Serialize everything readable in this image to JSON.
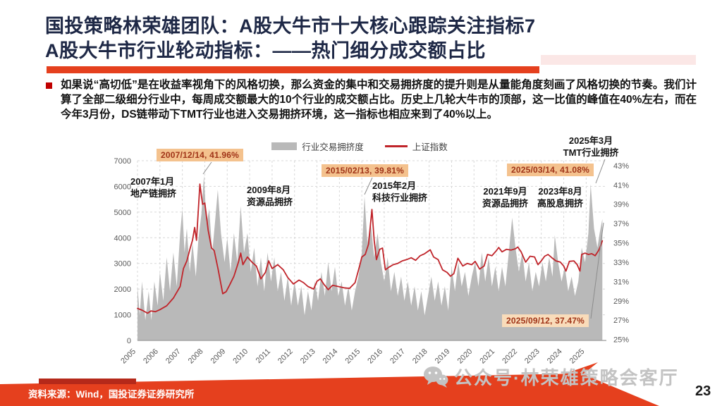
{
  "slide": {
    "title": {
      "line1": "国投策略林荣雄团队：A股大牛市十大核心跟踪关注指标7",
      "line2": "A股大牛市行业轮动指标：——热门细分成交额占比"
    },
    "bullet": {
      "text": "如果说“高切低”是在收益率视角下的风格切换，那么资金的集中和交易拥挤度的提升则是从量能角度刻画了风格切换的节奏。我们计算了全部二级细分行业中，每周成交额最大的10个行业的成交额占比。历史上几轮大牛市的顶部，这一比值的峰值在40%左右，而在今年3月份，DS链带动下TMT行业也进入交易拥挤环境，这一指标也相应来到了40%以上。"
    },
    "footer": {
      "source": "资料来源：Wind，国投证券证券研究所",
      "page_number": "23"
    },
    "watermark": {
      "text": "公众号·林荣雄策略会客厅"
    }
  },
  "colors": {
    "title_navy": "#1e2846",
    "accent_red": "#e5401e",
    "dark_red": "#b5291a",
    "area_gray": "#b9b9b9",
    "line_red": "#c0242a",
    "badge_bg": "#f4c28e",
    "badge_bg_light": "#f9dcba",
    "badge_text": "#a03418",
    "grid_gray": "#d8d8d8",
    "tick_gray": "#595959"
  },
  "chart_data": {
    "type": "combo",
    "title": "",
    "legend": [
      {
        "label": "行业交易拥挤度",
        "marker": "area",
        "color": "#b9b9b9"
      },
      {
        "label": "上证指数",
        "marker": "line",
        "color": "#c0242a"
      }
    ],
    "x_axis": {
      "ticks": [
        "2005",
        "2006",
        "2007",
        "2008",
        "2009",
        "2010",
        "2011",
        "2012",
        "2013",
        "2014",
        "2015",
        "2016",
        "2017",
        "2018",
        "2019",
        "2020",
        "2021",
        "2022",
        "2023",
        "2024",
        "2025"
      ],
      "range": [
        2005,
        2025.9
      ]
    },
    "left_axis": {
      "ticks": [
        0,
        1000,
        2000,
        3000,
        4000,
        5000,
        6000,
        7000
      ],
      "range": [
        0,
        7000
      ]
    },
    "right_axis": {
      "ticks": [
        "43%",
        "41%",
        "39%",
        "37%",
        "35%",
        "33%",
        "31%",
        "29%",
        "27%",
        "25%"
      ],
      "tick_values": [
        43,
        41,
        39,
        37,
        35,
        33,
        31,
        29,
        27,
        25
      ],
      "range": [
        24.9,
        43.5
      ]
    },
    "series": [
      {
        "name": "行业交易拥挤度",
        "type": "area",
        "axis": "right",
        "color": "#b9b9b9",
        "points": [
          [
            2005.0,
            30.5
          ],
          [
            2005.1,
            27.5
          ],
          [
            2005.2,
            31.0
          ],
          [
            2005.35,
            27.0
          ],
          [
            2005.5,
            30.0
          ],
          [
            2005.62,
            27.0
          ],
          [
            2005.75,
            31.0
          ],
          [
            2005.9,
            28.5
          ],
          [
            2006.0,
            32.0
          ],
          [
            2006.15,
            29.0
          ],
          [
            2006.3,
            33.5
          ],
          [
            2006.45,
            30.0
          ],
          [
            2006.6,
            34.0
          ],
          [
            2006.75,
            30.5
          ],
          [
            2006.9,
            36.0
          ],
          [
            2007.0,
            38.5
          ],
          [
            2007.1,
            34.0
          ],
          [
            2007.2,
            36.5
          ],
          [
            2007.33,
            32.0
          ],
          [
            2007.45,
            35.0
          ],
          [
            2007.6,
            31.5
          ],
          [
            2007.72,
            35.5
          ],
          [
            2007.85,
            38.0
          ],
          [
            2007.96,
            41.96
          ],
          [
            2008.08,
            37.0
          ],
          [
            2008.2,
            38.5
          ],
          [
            2008.33,
            34.0
          ],
          [
            2008.45,
            37.0
          ],
          [
            2008.58,
            40.5
          ],
          [
            2008.72,
            36.0
          ],
          [
            2008.88,
            33.0
          ],
          [
            2009.0,
            35.5
          ],
          [
            2009.15,
            32.0
          ],
          [
            2009.3,
            36.0
          ],
          [
            2009.45,
            33.0
          ],
          [
            2009.6,
            38.8
          ],
          [
            2009.75,
            34.0
          ],
          [
            2009.9,
            36.0
          ],
          [
            2010.05,
            32.0
          ],
          [
            2010.2,
            34.5
          ],
          [
            2010.35,
            30.5
          ],
          [
            2010.5,
            33.5
          ],
          [
            2010.65,
            30.0
          ],
          [
            2010.8,
            34.0
          ],
          [
            2010.95,
            31.0
          ],
          [
            2011.1,
            33.5
          ],
          [
            2011.25,
            30.0
          ],
          [
            2011.4,
            32.0
          ],
          [
            2011.55,
            29.0
          ],
          [
            2011.7,
            31.5
          ],
          [
            2011.85,
            28.5
          ],
          [
            2012.0,
            31.0
          ],
          [
            2012.15,
            28.5
          ],
          [
            2012.3,
            30.5
          ],
          [
            2012.45,
            27.5
          ],
          [
            2012.6,
            30.0
          ],
          [
            2012.75,
            28.0
          ],
          [
            2012.9,
            31.0
          ],
          [
            2013.05,
            29.0
          ],
          [
            2013.2,
            32.0
          ],
          [
            2013.35,
            29.5
          ],
          [
            2013.5,
            33.0
          ],
          [
            2013.65,
            30.0
          ],
          [
            2013.8,
            32.5
          ],
          [
            2013.95,
            29.5
          ],
          [
            2014.1,
            31.0
          ],
          [
            2014.25,
            28.5
          ],
          [
            2014.4,
            30.5
          ],
          [
            2014.55,
            28.0
          ],
          [
            2014.7,
            30.0
          ],
          [
            2014.85,
            31.5
          ],
          [
            2015.0,
            34.0
          ],
          [
            2015.12,
            39.81
          ],
          [
            2015.25,
            35.0
          ],
          [
            2015.4,
            37.0
          ],
          [
            2015.55,
            33.5
          ],
          [
            2015.7,
            36.0
          ],
          [
            2015.85,
            33.0
          ],
          [
            2016.0,
            31.0
          ],
          [
            2016.15,
            33.5
          ],
          [
            2016.3,
            30.0
          ],
          [
            2016.45,
            32.0
          ],
          [
            2016.6,
            29.5
          ],
          [
            2016.75,
            31.5
          ],
          [
            2016.9,
            29.0
          ],
          [
            2017.05,
            31.0
          ],
          [
            2017.2,
            28.5
          ],
          [
            2017.35,
            30.5
          ],
          [
            2017.5,
            28.0
          ],
          [
            2017.65,
            30.0
          ],
          [
            2017.8,
            27.5
          ],
          [
            2017.95,
            29.5
          ],
          [
            2018.1,
            31.5
          ],
          [
            2018.25,
            29.0
          ],
          [
            2018.4,
            31.0
          ],
          [
            2018.55,
            28.5
          ],
          [
            2018.7,
            30.5
          ],
          [
            2018.85,
            28.0
          ],
          [
            2019.0,
            32.5
          ],
          [
            2019.15,
            30.0
          ],
          [
            2019.3,
            33.0
          ],
          [
            2019.45,
            30.5
          ],
          [
            2019.6,
            32.0
          ],
          [
            2019.75,
            29.5
          ],
          [
            2019.9,
            31.5
          ],
          [
            2020.05,
            33.0
          ],
          [
            2020.2,
            30.5
          ],
          [
            2020.35,
            34.0
          ],
          [
            2020.5,
            31.0
          ],
          [
            2020.65,
            33.5
          ],
          [
            2020.8,
            30.5
          ],
          [
            2020.95,
            32.5
          ],
          [
            2021.1,
            30.0
          ],
          [
            2021.25,
            32.5
          ],
          [
            2021.4,
            30.5
          ],
          [
            2021.55,
            34.0
          ],
          [
            2021.7,
            37.6
          ],
          [
            2021.85,
            34.5
          ],
          [
            2022.0,
            32.0
          ],
          [
            2022.15,
            34.0
          ],
          [
            2022.3,
            31.0
          ],
          [
            2022.45,
            33.0
          ],
          [
            2022.6,
            30.0
          ],
          [
            2022.75,
            32.0
          ],
          [
            2022.9,
            30.5
          ],
          [
            2023.05,
            33.0
          ],
          [
            2023.2,
            31.0
          ],
          [
            2023.35,
            33.5
          ],
          [
            2023.5,
            31.5
          ],
          [
            2023.6,
            35.8
          ],
          [
            2023.75,
            33.0
          ],
          [
            2023.9,
            31.0
          ],
          [
            2024.05,
            32.5
          ],
          [
            2024.2,
            30.0
          ],
          [
            2024.35,
            31.5
          ],
          [
            2024.5,
            29.5
          ],
          [
            2024.65,
            31.0
          ],
          [
            2024.8,
            34.5
          ],
          [
            2024.95,
            33.0
          ],
          [
            2025.1,
            36.0
          ],
          [
            2025.2,
            41.08
          ],
          [
            2025.35,
            36.5
          ],
          [
            2025.5,
            34.5
          ],
          [
            2025.6,
            36.0
          ],
          [
            2025.72,
            37.47
          ]
        ]
      },
      {
        "name": "上证指数",
        "type": "line",
        "axis": "left",
        "color": "#c0242a",
        "points": [
          [
            2005.0,
            1250
          ],
          [
            2005.2,
            1180
          ],
          [
            2005.45,
            1060
          ],
          [
            2005.6,
            1150
          ],
          [
            2005.8,
            1120
          ],
          [
            2006.0,
            1200
          ],
          [
            2006.3,
            1350
          ],
          [
            2006.6,
            1650
          ],
          [
            2006.9,
            2100
          ],
          [
            2007.05,
            2800
          ],
          [
            2007.2,
            3100
          ],
          [
            2007.35,
            3600
          ],
          [
            2007.45,
            3900
          ],
          [
            2007.55,
            4400
          ],
          [
            2007.63,
            3900
          ],
          [
            2007.78,
            6090
          ],
          [
            2007.9,
            5300
          ],
          [
            2008.0,
            5350
          ],
          [
            2008.15,
            4300
          ],
          [
            2008.3,
            3600
          ],
          [
            2008.42,
            3500
          ],
          [
            2008.6,
            2750
          ],
          [
            2008.8,
            1820
          ],
          [
            2008.95,
            1900
          ],
          [
            2009.1,
            2150
          ],
          [
            2009.3,
            2500
          ],
          [
            2009.5,
            3050
          ],
          [
            2009.6,
            3400
          ],
          [
            2009.7,
            2950
          ],
          [
            2009.9,
            3250
          ],
          [
            2010.1,
            3050
          ],
          [
            2010.3,
            2900
          ],
          [
            2010.5,
            2400
          ],
          [
            2010.7,
            2650
          ],
          [
            2010.85,
            3100
          ],
          [
            2011.0,
            2800
          ],
          [
            2011.25,
            2950
          ],
          [
            2011.5,
            2750
          ],
          [
            2011.7,
            2450
          ],
          [
            2011.95,
            2200
          ],
          [
            2012.2,
            2350
          ],
          [
            2012.4,
            2250
          ],
          [
            2012.6,
            2100
          ],
          [
            2012.85,
            2000
          ],
          [
            2013.0,
            2300
          ],
          [
            2013.15,
            2400
          ],
          [
            2013.3,
            2200
          ],
          [
            2013.5,
            1980
          ],
          [
            2013.7,
            2150
          ],
          [
            2013.95,
            2100
          ],
          [
            2014.2,
            2050
          ],
          [
            2014.45,
            2030
          ],
          [
            2014.7,
            2250
          ],
          [
            2014.9,
            2900
          ],
          [
            2015.0,
            3250
          ],
          [
            2015.15,
            3350
          ],
          [
            2015.3,
            3750
          ],
          [
            2015.45,
            5100
          ],
          [
            2015.55,
            3900
          ],
          [
            2015.65,
            3150
          ],
          [
            2015.8,
            3550
          ],
          [
            2015.92,
            3600
          ],
          [
            2016.05,
            2750
          ],
          [
            2016.2,
            2850
          ],
          [
            2016.4,
            2950
          ],
          [
            2016.6,
            3000
          ],
          [
            2016.8,
            3100
          ],
          [
            2017.0,
            3150
          ],
          [
            2017.2,
            3220
          ],
          [
            2017.4,
            3120
          ],
          [
            2017.6,
            3300
          ],
          [
            2017.8,
            3380
          ],
          [
            2018.05,
            3530
          ],
          [
            2018.2,
            3250
          ],
          [
            2018.4,
            3150
          ],
          [
            2018.6,
            2750
          ],
          [
            2018.8,
            2650
          ],
          [
            2018.95,
            2500
          ],
          [
            2019.1,
            2600
          ],
          [
            2019.28,
            3200
          ],
          [
            2019.5,
            2900
          ],
          [
            2019.7,
            3000
          ],
          [
            2019.9,
            2950
          ],
          [
            2020.05,
            3080
          ],
          [
            2020.25,
            2780
          ],
          [
            2020.45,
            2900
          ],
          [
            2020.6,
            3350
          ],
          [
            2020.8,
            3300
          ],
          [
            2021.0,
            3500
          ],
          [
            2021.1,
            3620
          ],
          [
            2021.25,
            3450
          ],
          [
            2021.45,
            3550
          ],
          [
            2021.65,
            3520
          ],
          [
            2021.85,
            3570
          ],
          [
            2021.95,
            3640
          ],
          [
            2022.1,
            3450
          ],
          [
            2022.3,
            3050
          ],
          [
            2022.5,
            3280
          ],
          [
            2022.7,
            3250
          ],
          [
            2022.85,
            2950
          ],
          [
            2023.0,
            3100
          ],
          [
            2023.15,
            3280
          ],
          [
            2023.3,
            3350
          ],
          [
            2023.5,
            3200
          ],
          [
            2023.65,
            3100
          ],
          [
            2023.85,
            3050
          ],
          [
            2024.0,
            2900
          ],
          [
            2024.1,
            2700
          ],
          [
            2024.25,
            3080
          ],
          [
            2024.45,
            3100
          ],
          [
            2024.6,
            2950
          ],
          [
            2024.72,
            2700
          ],
          [
            2024.8,
            3350
          ],
          [
            2024.95,
            3400
          ],
          [
            2025.1,
            3350
          ],
          [
            2025.25,
            3380
          ],
          [
            2025.4,
            3300
          ],
          [
            2025.55,
            3500
          ],
          [
            2025.65,
            3700
          ],
          [
            2025.72,
            3880
          ]
        ]
      }
    ],
    "annotations": {
      "callouts": [
        {
          "text": "2007/12/14, 41.96%"
        },
        {
          "text": "2015/02/13, 39.81%"
        },
        {
          "text": "2025/03/14, 41.08%"
        },
        {
          "text": "2025/09/12, 37.47%"
        }
      ],
      "labels": [
        {
          "line1": "2007年1月",
          "line2": "地产链拥挤"
        },
        {
          "line1": "2009年8月",
          "line2": "资源品拥挤"
        },
        {
          "line1": "2015年2月",
          "line2": "科技行业拥挤"
        },
        {
          "line1": "2021年9月",
          "line2": "资源品拥挤"
        },
        {
          "line1": "2023年8月",
          "line2": "高股息拥挤"
        },
        {
          "line1": "2025年3月",
          "line2": "TMT行业拥挤"
        }
      ]
    }
  }
}
